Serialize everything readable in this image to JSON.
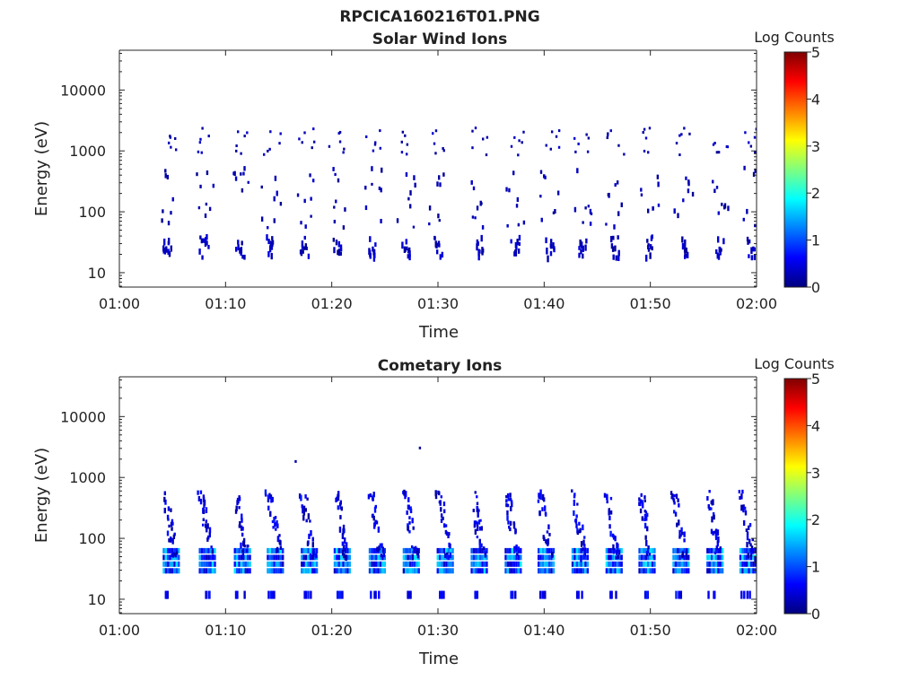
{
  "figure": {
    "title": "RPCICA160216T01.PNG"
  },
  "colorscale": {
    "label": "Log Counts",
    "ticks": [
      "0",
      "1",
      "2",
      "3",
      "4",
      "5"
    ],
    "min": 0,
    "max": 5,
    "colors": [
      "#00007f",
      "#0000ff",
      "#007fff",
      "#00ffff",
      "#7fff7f",
      "#ffff00",
      "#ff7f00",
      "#ff0000",
      "#7f0000"
    ]
  },
  "chart_data": [
    {
      "type": "heatmap",
      "title": "Solar Wind Ions",
      "xlabel": "Time",
      "ylabel": "Energy (eV)",
      "x_ticks": [
        "01:00",
        "01:10",
        "01:20",
        "01:30",
        "01:40",
        "01:50",
        "02:00"
      ],
      "y_ticks": [
        "10",
        "100",
        "1000",
        "10000"
      ],
      "y_scale": "log",
      "x_range_min": [
        0,
        60
      ],
      "y_range": [
        5.8,
        45000
      ],
      "bursts_min": [
        4.3,
        7.8,
        11.2,
        14.1,
        17.3,
        20.3,
        23.6,
        26.8,
        29.9,
        33.7,
        37.1,
        40.4,
        43.4,
        46.5,
        49.7,
        52.9,
        56.3,
        59.3
      ],
      "population_energy_ev": [
        26,
        170,
        1400
      ],
      "intensity_log_counts": [
        0.1,
        0.6
      ]
    },
    {
      "type": "heatmap",
      "title": "Cometary Ions",
      "xlabel": "Time",
      "ylabel": "Energy (eV)",
      "x_ticks": [
        "01:00",
        "01:10",
        "01:20",
        "01:30",
        "01:40",
        "01:50",
        "02:00"
      ],
      "y_ticks": [
        "10",
        "100",
        "1000",
        "10000"
      ],
      "y_scale": "log",
      "x_range_min": [
        0,
        60
      ],
      "y_range": [
        5.8,
        45000
      ],
      "bursts_min": [
        4.5,
        7.9,
        11.2,
        14.3,
        17.5,
        20.6,
        23.9,
        27.1,
        30.3,
        33.5,
        36.7,
        39.8,
        43.0,
        46.2,
        49.3,
        52.5,
        55.7,
        58.8
      ],
      "population_energy_ev": [
        12,
        40,
        600
      ],
      "intensity_log_counts": [
        0.3,
        1.8
      ],
      "annotations_ev": [
        1800,
        3000
      ]
    }
  ]
}
